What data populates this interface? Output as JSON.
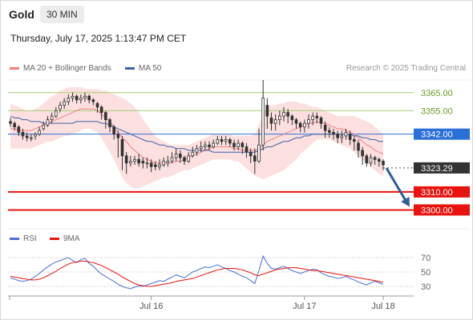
{
  "header": {
    "instrument": "Gold",
    "timeframe": "30 MIN",
    "timestamp": "Thursday, July 17, 2025 1:13:47 PM CET"
  },
  "legend": {
    "ma20_label": "MA 20 + Bollinger Bands",
    "ma50_label": "MA 50",
    "copyright": "Research © 2025 Trading Central"
  },
  "rsi_legend": {
    "rsi_label": "RSI",
    "ma_label": "9MA"
  },
  "colors": {
    "ma20": "#f08080",
    "band": "#fbd9d9",
    "ma50": "#3a62a8",
    "resistance": "#a6cf74",
    "pivot": "#2b6fd8",
    "support": "#e8140f",
    "current": "#333333",
    "candle": "#333333",
    "rsi": "#4a6fd6",
    "rsi_ma": "#e8140f",
    "arrow": "#2f5f9a"
  },
  "chart_data": [
    {
      "type": "candlestick",
      "title": "",
      "x_ticks": [
        "Jul 16",
        "Jul 17",
        "Jul 18"
      ],
      "y_range": [
        3290,
        3372
      ],
      "levels": [
        {
          "label": "3365.00",
          "value": 3365,
          "kind": "resistance"
        },
        {
          "label": "3355.00",
          "value": 3355,
          "kind": "resistance"
        },
        {
          "label": "3342.00",
          "value": 3342,
          "kind": "pivot"
        },
        {
          "label": "3323.29",
          "value": 3323.29,
          "kind": "current"
        },
        {
          "label": "3310.00",
          "value": 3310,
          "kind": "support"
        },
        {
          "label": "3300.00",
          "value": 3300,
          "kind": "support"
        }
      ],
      "series": [
        {
          "name": "Price",
          "close": [
            3348,
            3346,
            3343,
            3341,
            3340,
            3340,
            3342,
            3344,
            3347,
            3350,
            3352,
            3355,
            3358,
            3360,
            3362,
            3363,
            3361,
            3362,
            3363,
            3361,
            3360,
            3357,
            3354,
            3350,
            3346,
            3342,
            3340,
            3330,
            3326,
            3327,
            3328,
            3326,
            3326,
            3326,
            3324,
            3324,
            3325,
            3327,
            3327,
            3329,
            3331,
            3329,
            3327,
            3330,
            3332,
            3334,
            3335,
            3336,
            3335,
            3337,
            3339,
            3338,
            3339,
            3337,
            3335,
            3337,
            3335,
            3332,
            3330,
            3327,
            3336,
            3362,
            3352,
            3348,
            3350,
            3352,
            3354,
            3352,
            3350,
            3348,
            3346,
            3348,
            3350,
            3352,
            3351,
            3348,
            3344,
            3343,
            3342,
            3340,
            3341,
            3343,
            3339,
            3338,
            3333,
            3330,
            3326,
            3329,
            3328,
            3327,
            3325
          ],
          "open": [
            3349,
            3348,
            3346,
            3343,
            3341,
            3340,
            3341,
            3342,
            3345,
            3347,
            3350,
            3352,
            3356,
            3358,
            3360,
            3362,
            3363,
            3361,
            3362,
            3363,
            3361,
            3359,
            3357,
            3354,
            3350,
            3346,
            3342,
            3339,
            3330,
            3326,
            3327,
            3328,
            3327,
            3326,
            3326,
            3325,
            3324,
            3325,
            3326,
            3327,
            3329,
            3331,
            3329,
            3327,
            3330,
            3332,
            3334,
            3335,
            3336,
            3335,
            3337,
            3339,
            3338,
            3339,
            3337,
            3335,
            3337,
            3335,
            3332,
            3330,
            3327,
            3336,
            3358,
            3351,
            3348,
            3350,
            3352,
            3354,
            3352,
            3350,
            3348,
            3346,
            3348,
            3350,
            3352,
            3351,
            3347,
            3344,
            3343,
            3342,
            3340,
            3341,
            3342,
            3339,
            3337,
            3333,
            3330,
            3326,
            3329,
            3328,
            3327
          ],
          "high": [
            3351,
            3349,
            3347,
            3345,
            3343,
            3342,
            3343,
            3346,
            3349,
            3352,
            3354,
            3357,
            3360,
            3362,
            3364,
            3365,
            3364,
            3364,
            3365,
            3364,
            3362,
            3360,
            3358,
            3355,
            3351,
            3347,
            3344,
            3341,
            3332,
            3330,
            3330,
            3331,
            3329,
            3329,
            3328,
            3327,
            3328,
            3329,
            3330,
            3332,
            3334,
            3333,
            3330,
            3332,
            3335,
            3336,
            3338,
            3338,
            3338,
            3339,
            3341,
            3341,
            3341,
            3340,
            3339,
            3339,
            3338,
            3337,
            3334,
            3334,
            3345,
            3372,
            3362,
            3354,
            3353,
            3355,
            3357,
            3356,
            3353,
            3351,
            3349,
            3350,
            3353,
            3354,
            3354,
            3352,
            3349,
            3346,
            3345,
            3344,
            3344,
            3345,
            3344,
            3341,
            3339,
            3335,
            3331,
            3331,
            3330,
            3329,
            3328
          ],
          "low": [
            3346,
            3344,
            3341,
            3339,
            3338,
            3338,
            3339,
            3341,
            3344,
            3346,
            3348,
            3351,
            3354,
            3356,
            3358,
            3360,
            3359,
            3359,
            3360,
            3359,
            3358,
            3354,
            3350,
            3345,
            3343,
            3339,
            3329,
            3322,
            3320,
            3324,
            3325,
            3324,
            3323,
            3323,
            3321,
            3322,
            3322,
            3324,
            3324,
            3326,
            3327,
            3326,
            3325,
            3326,
            3329,
            3330,
            3332,
            3333,
            3333,
            3334,
            3336,
            3336,
            3336,
            3335,
            3333,
            3333,
            3331,
            3329,
            3326,
            3320,
            3326,
            3333,
            3345,
            3344,
            3344,
            3347,
            3349,
            3348,
            3347,
            3345,
            3343,
            3343,
            3345,
            3347,
            3348,
            3345,
            3340,
            3340,
            3339,
            3337,
            3337,
            3339,
            3336,
            3333,
            3329,
            3325,
            3324,
            3324,
            3325,
            3324,
            3322
          ]
        },
        {
          "name": "MA 20",
          "values": [
            3345,
            3345,
            3344,
            3344,
            3344,
            3344,
            3345,
            3346,
            3347,
            3348,
            3349,
            3350,
            3351,
            3352,
            3353,
            3354,
            3355,
            3356,
            3356,
            3356,
            3356,
            3355,
            3353,
            3351,
            3349,
            3346,
            3343,
            3340,
            3338,
            3335,
            3333,
            3331,
            3329,
            3328,
            3327,
            3326,
            3326,
            3326,
            3326,
            3326,
            3327,
            3327,
            3328,
            3329,
            3330,
            3331,
            3332,
            3333,
            3334,
            3335,
            3335,
            3335,
            3335,
            3335,
            3334,
            3334,
            3333,
            3333,
            3333,
            3333,
            3334,
            3336,
            3338,
            3339,
            3340,
            3341,
            3342,
            3343,
            3344,
            3345,
            3346,
            3347,
            3348,
            3348,
            3349,
            3348,
            3348,
            3347,
            3346,
            3345,
            3345,
            3344,
            3343,
            3342,
            3340,
            3338,
            3336,
            3335,
            3333,
            3332,
            3331
          ]
        },
        {
          "name": "Bollinger upper",
          "values": [
            3359,
            3358,
            3357,
            3356,
            3355,
            3355,
            3356,
            3357,
            3359,
            3361,
            3363,
            3364,
            3366,
            3367,
            3368,
            3368,
            3368,
            3368,
            3367,
            3367,
            3367,
            3367,
            3366,
            3366,
            3365,
            3364,
            3363,
            3362,
            3361,
            3359,
            3357,
            3354,
            3350,
            3347,
            3344,
            3341,
            3339,
            3338,
            3337,
            3336,
            3336,
            3336,
            3336,
            3336,
            3337,
            3338,
            3339,
            3340,
            3341,
            3342,
            3342,
            3342,
            3342,
            3342,
            3341,
            3341,
            3341,
            3341,
            3341,
            3342,
            3347,
            3353,
            3357,
            3358,
            3358,
            3359,
            3359,
            3360,
            3360,
            3360,
            3359,
            3359,
            3358,
            3357,
            3357,
            3356,
            3355,
            3354,
            3353,
            3352,
            3352,
            3352,
            3352,
            3352,
            3351,
            3350,
            3349,
            3348,
            3346,
            3344,
            3342
          ]
        },
        {
          "name": "Bollinger lower",
          "values": [
            3334,
            3334,
            3334,
            3334,
            3334,
            3334,
            3335,
            3336,
            3337,
            3338,
            3338,
            3339,
            3340,
            3341,
            3341,
            3342,
            3343,
            3344,
            3345,
            3345,
            3344,
            3343,
            3340,
            3336,
            3332,
            3328,
            3323,
            3318,
            3315,
            3313,
            3312,
            3312,
            3313,
            3314,
            3315,
            3316,
            3317,
            3318,
            3318,
            3319,
            3320,
            3321,
            3322,
            3322,
            3323,
            3324,
            3325,
            3326,
            3327,
            3328,
            3328,
            3328,
            3328,
            3328,
            3327,
            3327,
            3325,
            3323,
            3321,
            3319,
            3318,
            3317,
            3318,
            3319,
            3320,
            3321,
            3322,
            3324,
            3326,
            3328,
            3331,
            3333,
            3335,
            3337,
            3339,
            3339,
            3339,
            3339,
            3338,
            3337,
            3336,
            3335,
            3334,
            3332,
            3330,
            3328,
            3326,
            3324,
            3322,
            3320,
            3319
          ]
        },
        {
          "name": "MA 50",
          "values": [
            3352,
            3351,
            3351,
            3350,
            3350,
            3349,
            3349,
            3349,
            3348,
            3348,
            3348,
            3348,
            3348,
            3348,
            3348,
            3348,
            3349,
            3349,
            3349,
            3349,
            3349,
            3349,
            3348,
            3348,
            3347,
            3346,
            3345,
            3344,
            3343,
            3342,
            3341,
            3340,
            3339,
            3338,
            3338,
            3337,
            3336,
            3336,
            3335,
            3335,
            3334,
            3334,
            3334,
            3333,
            3333,
            3333,
            3333,
            3333,
            3333,
            3332,
            3332,
            3332,
            3332,
            3332,
            3332,
            3332,
            3332,
            3332,
            3332,
            3332,
            3333,
            3334,
            3335,
            3335,
            3336,
            3337,
            3338,
            3338,
            3339,
            3340,
            3340,
            3341,
            3341,
            3342,
            3342,
            3342,
            3342,
            3342,
            3342,
            3342,
            3342,
            3342,
            3342,
            3341,
            3341,
            3340,
            3340,
            3339,
            3339,
            3338,
            3338
          ]
        }
      ]
    },
    {
      "type": "line",
      "title": "",
      "y_ticks": [
        "70",
        "50",
        "30"
      ],
      "y_range": [
        20,
        80
      ],
      "series": [
        {
          "name": "RSI",
          "values": [
            42,
            40,
            38,
            37,
            38,
            40,
            44,
            48,
            53,
            57,
            61,
            64,
            66,
            68,
            70,
            66,
            63,
            67,
            69,
            62,
            58,
            52,
            47,
            44,
            40,
            37,
            33,
            30,
            28,
            27,
            29,
            31,
            30,
            32,
            34,
            36,
            38,
            37,
            40,
            43,
            46,
            44,
            42,
            46,
            50,
            52,
            55,
            57,
            56,
            58,
            60,
            57,
            55,
            52,
            50,
            47,
            44,
            42,
            38,
            34,
            52,
            72,
            62,
            55,
            54,
            56,
            58,
            55,
            52,
            50,
            48,
            50,
            52,
            54,
            53,
            49,
            46,
            44,
            43,
            41,
            42,
            44,
            41,
            39,
            36,
            34,
            32,
            35,
            37,
            35,
            33
          ]
        },
        {
          "name": "9MA",
          "values": [
            44,
            43,
            42,
            41,
            40,
            39,
            39,
            40,
            42,
            45,
            48,
            51,
            55,
            58,
            61,
            63,
            64,
            65,
            65,
            64,
            63,
            61,
            59,
            56,
            53,
            50,
            47,
            43,
            40,
            37,
            34,
            32,
            31,
            30,
            30,
            31,
            32,
            33,
            34,
            35,
            37,
            38,
            39,
            40,
            41,
            43,
            45,
            47,
            49,
            51,
            53,
            54,
            55,
            55,
            55,
            54,
            53,
            51,
            49,
            46,
            45,
            47,
            49,
            51,
            53,
            54,
            55,
            56,
            56,
            56,
            55,
            54,
            53,
            52,
            52,
            51,
            50,
            49,
            48,
            47,
            46,
            45,
            44,
            43,
            42,
            41,
            40,
            39,
            38,
            37,
            36
          ]
        }
      ]
    }
  ]
}
